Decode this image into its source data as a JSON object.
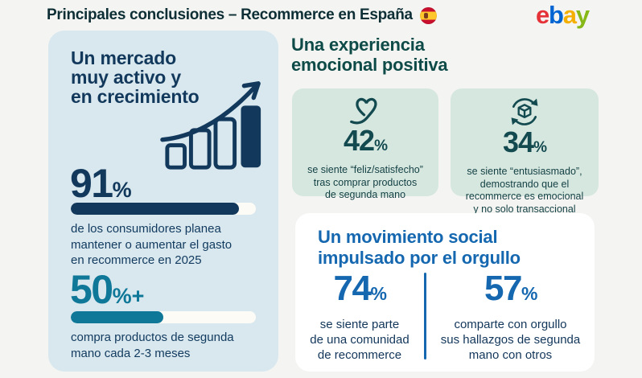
{
  "header": {
    "title": "Principales conclusiones – Recommerce en España",
    "flag": "spain-flag",
    "logo_letters": {
      "e": "e",
      "b": "b",
      "a": "a",
      "y": "y"
    }
  },
  "colors": {
    "page_background": "#f4f5f2",
    "panel_background": "#d9e8ef",
    "mint_card_background": "#d6e7df",
    "navy": "#12395c",
    "teal": "#0f7898",
    "dark_green_heading": "#0e4a47",
    "card_text_teal": "#134a50",
    "blue": "#1568b0",
    "ebay_e": "#e53238",
    "ebay_b": "#0064d2",
    "ebay_a": "#f5af02",
    "ebay_y": "#86b817"
  },
  "market_panel": {
    "heading_lines": [
      "Un mercado",
      "muy activo y",
      "en crecimiento"
    ],
    "icon": "growth-chart-icon",
    "stats": [
      {
        "value": "91",
        "unit": "%",
        "bar_percent": 91,
        "description_lines": [
          "de los consumidores planea",
          "mantener o aumentar el gasto",
          "en recommerce en 2025"
        ]
      },
      {
        "value": "50",
        "unit": "%+",
        "bar_percent": 50,
        "description_lines": [
          "compra productos de segunda",
          "mano cada 2-3 meses"
        ]
      }
    ]
  },
  "emotion_section": {
    "heading_lines": [
      "Una experiencia",
      "emocional positiva"
    ],
    "cards": [
      {
        "icon": "heart-icon",
        "value": "42",
        "unit": "%",
        "description_lines": [
          "se siente “feliz/satisfecho”",
          "tras comprar productos",
          "de segunda mano"
        ]
      },
      {
        "icon": "recommerce-package-icon",
        "value": "34",
        "unit": "%",
        "description_lines": [
          "se siente “entusiasmado”,",
          "demostrando que el",
          "recommerce es emocional",
          "y no solo transaccional"
        ]
      }
    ]
  },
  "social_card": {
    "heading_lines": [
      "Un movimiento social",
      "impulsado por el orgullo"
    ],
    "stats": [
      {
        "value": "74",
        "unit": "%",
        "description_lines": [
          "se siente parte",
          "de una comunidad",
          "de recommerce"
        ]
      },
      {
        "value": "57",
        "unit": "%",
        "description_lines": [
          "comparte con orgullo",
          "sus hallazgos de segunda",
          "mano con otros"
        ]
      }
    ]
  },
  "chart_data": {
    "type": "bar",
    "title": "Principales conclusiones – Recommerce en España",
    "categories": [
      "planea mantener o aumentar el gasto en recommerce en 2025",
      "compra productos de segunda mano cada 2-3 meses",
      "se siente feliz/satisfecho tras comprar productos de segunda mano",
      "se siente entusiasmado (recommerce emocional, no solo transaccional)",
      "se siente parte de una comunidad de recommerce",
      "comparte con orgullo sus hallazgos de segunda mano con otros"
    ],
    "values": [
      91,
      50,
      42,
      34,
      74,
      57
    ],
    "unit": "%",
    "xlabel": "",
    "ylabel": "",
    "ylim": [
      0,
      100
    ],
    "legend": false,
    "grid": false
  }
}
